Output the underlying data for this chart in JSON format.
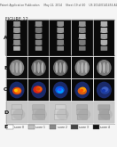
{
  "fig_bg": "#f5f5f5",
  "header_text": "Patent Application Publication     May 22, 2014    Sheet 19 of 40    US 2014/0141454 A1",
  "figure_label": "FIGURE 12",
  "panel_labels": [
    "A",
    "B",
    "C",
    "D"
  ],
  "num_columns": 5,
  "header_fontsize": 2.2,
  "label_fontsize": 4.5,
  "legend_fontsize": 2.2,
  "panel_border_color": "#cccccc",
  "outer_bg": "#e8e8e8",
  "row_A_bg": "#111111",
  "row_B_bg": "#181818",
  "row_C_bg": "#101010",
  "row_D_bg": "#cccccc",
  "legend_items": [
    "score 0",
    "score 1",
    "score 2",
    "score 3",
    "score 4"
  ],
  "legend_icon_colors": [
    "#ffffff",
    "#c0c0c0",
    "#888888",
    "#444444",
    "#111111"
  ]
}
